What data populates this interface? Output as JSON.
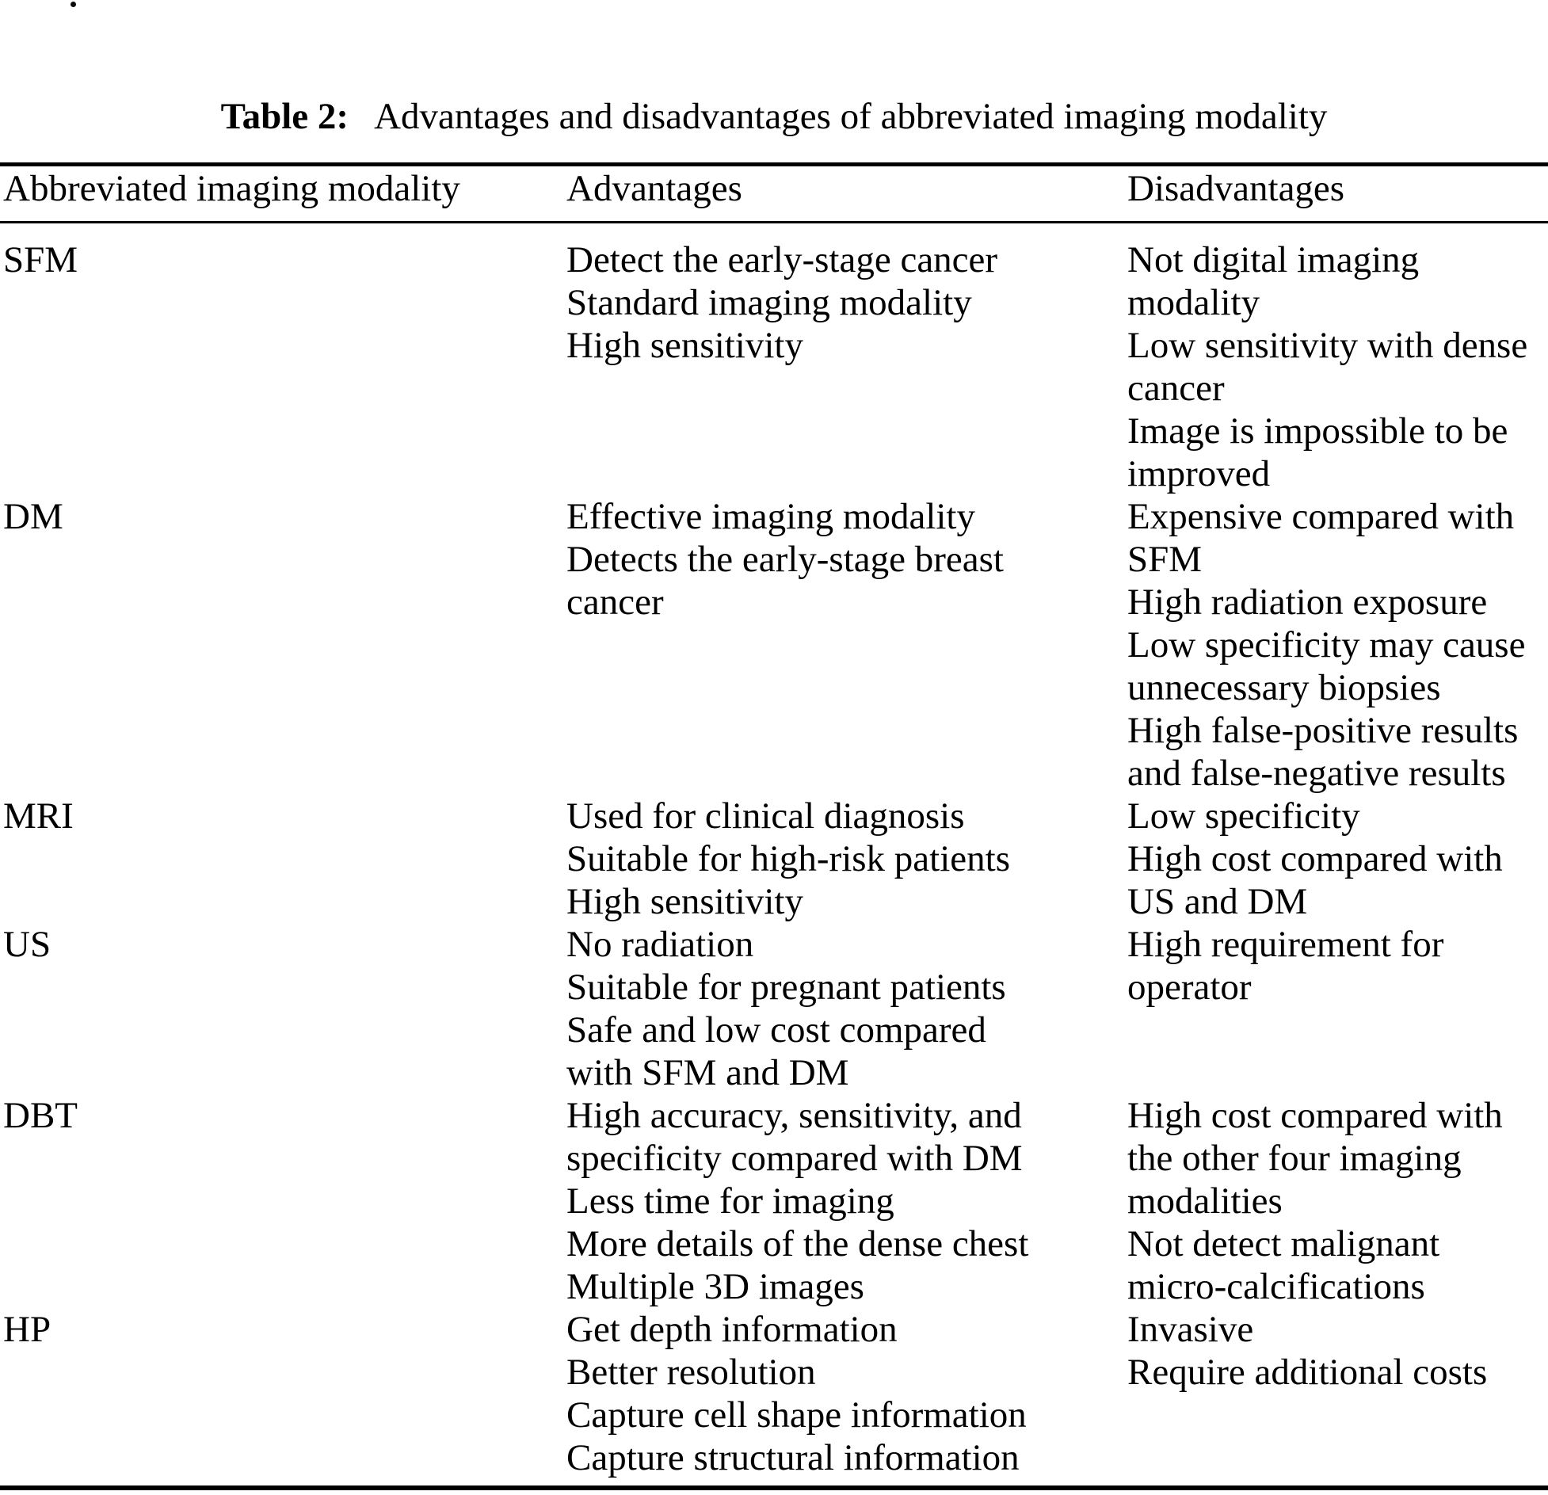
{
  "page": {
    "background": "#ffffff",
    "text_color": "#000000",
    "stray_mark": "."
  },
  "caption": {
    "label": "Table 2:",
    "text": "Advantages and disadvantages of abbreviated imaging modality"
  },
  "table": {
    "columns": [
      "Abbreviated imaging modality",
      "Advantages",
      "Disadvantages"
    ],
    "rows": [
      {
        "modality": "SFM",
        "advantages": [
          "Detect the early-stage cancer",
          "Standard imaging modality",
          "High sensitivity"
        ],
        "disadvantages": [
          "Not digital imaging",
          "modality",
          "Low sensitivity with dense",
          "cancer",
          "Image is impossible to be",
          "improved"
        ]
      },
      {
        "modality": "DM",
        "advantages": [
          "Effective imaging modality",
          "Detects the early-stage breast",
          "cancer"
        ],
        "disadvantages": [
          "Expensive compared with",
          "SFM",
          "High radiation exposure",
          "Low specificity may cause",
          "unnecessary biopsies",
          "High false-positive results",
          "and false-negative results"
        ]
      },
      {
        "modality": "MRI",
        "advantages": [
          "Used for clinical diagnosis",
          "Suitable for high-risk patients",
          "High sensitivity"
        ],
        "disadvantages": [
          "Low specificity",
          "High cost compared with",
          "US and DM"
        ]
      },
      {
        "modality": "US",
        "advantages": [
          "No radiation",
          "Suitable for pregnant patients",
          "Safe and low cost compared",
          "with SFM and DM"
        ],
        "disadvantages": [
          "High requirement for",
          "operator"
        ]
      },
      {
        "modality": "DBT",
        "advantages": [
          "High accuracy, sensitivity, and",
          "specificity compared with DM",
          "Less time for imaging",
          "More details of the dense chest",
          "Multiple 3D images"
        ],
        "disadvantages": [
          "High cost compared with",
          "the other four imaging",
          "modalities",
          "Not detect malignant",
          "micro-calcifications"
        ]
      },
      {
        "modality": "HP",
        "advantages": [
          "Get depth information",
          "Better resolution",
          "Capture cell shape information",
          "Capture structural information"
        ],
        "disadvantages": [
          "Invasive",
          "Require additional costs"
        ]
      }
    ]
  }
}
